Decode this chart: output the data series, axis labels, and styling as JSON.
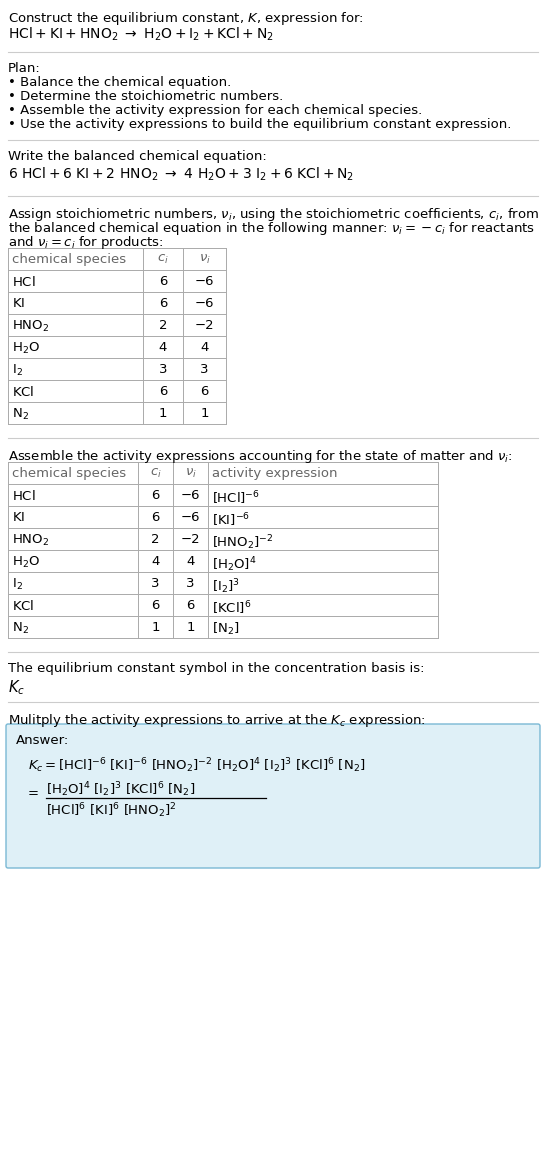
{
  "bg_color": "#ffffff",
  "text_color": "#000000",
  "gray_text": "#666666",
  "answer_box_bg": "#dff0f7",
  "answer_box_border": "#7ab8d4",
  "font_size": 9.5,
  "table_font_size": 9.5,
  "plan_items": [
    "• Balance the chemical equation.",
    "• Determine the stoichiometric numbers.",
    "• Assemble the activity expression for each chemical species.",
    "• Use the activity expressions to build the equilibrium constant expression."
  ],
  "table1_data": [
    [
      "HCl",
      "6",
      "−6"
    ],
    [
      "KI",
      "6",
      "−6"
    ],
    [
      "HNO_2",
      "2",
      "−2"
    ],
    [
      "H_2O",
      "4",
      "4"
    ],
    [
      "I_2",
      "3",
      "3"
    ],
    [
      "KCl",
      "6",
      "6"
    ],
    [
      "N_2",
      "1",
      "1"
    ]
  ],
  "table2_data": [
    [
      "HCl",
      "6",
      "−6",
      "[HCl]^{-6}"
    ],
    [
      "KI",
      "6",
      "−6",
      "[KI]^{-6}"
    ],
    [
      "HNO_2",
      "2",
      "−2",
      "[HNO_2]^{-2}"
    ],
    [
      "H_2O",
      "4",
      "4",
      "[H_2O]^4"
    ],
    [
      "I_2",
      "3",
      "3",
      "[I_2]^3"
    ],
    [
      "KCl",
      "6",
      "6",
      "[KCl]^6"
    ],
    [
      "N_2",
      "1",
      "1",
      "[N_2]"
    ]
  ]
}
